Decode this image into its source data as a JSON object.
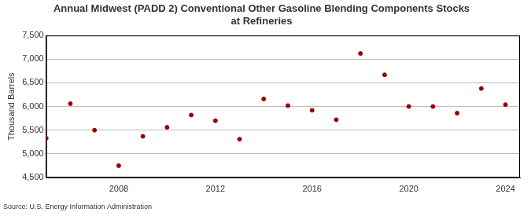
{
  "chart_data": {
    "type": "scatter",
    "title": "Annual Midwest (PADD 2) Conventional Other Gasoline Blending Components Stocks at Refineries",
    "y_label": "Thousand Barrels",
    "source": "Source: U.S. Energy Information Administration",
    "x": [
      2005,
      2006,
      2007,
      2008,
      2009,
      2010,
      2011,
      2012,
      2013,
      2014,
      2015,
      2016,
      2017,
      2018,
      2019,
      2020,
      2021,
      2022,
      2023,
      2024
    ],
    "values": [
      5330,
      6060,
      5500,
      4750,
      5370,
      5560,
      5820,
      5700,
      5310,
      6160,
      6020,
      5920,
      5720,
      7120,
      6670,
      6000,
      6000,
      5860,
      6380,
      6040
    ],
    "color": "#990000",
    "marker": "circle",
    "xlim": [
      2005,
      2024.6
    ],
    "xticks": [
      2008,
      2012,
      2016,
      2020,
      2024
    ],
    "ylim": [
      4500,
      7500
    ],
    "yticks": [
      {
        "value": 4500,
        "label": "4,500"
      },
      {
        "value": 5000,
        "label": "5,000"
      },
      {
        "value": 5500,
        "label": "5,500"
      },
      {
        "value": 6000,
        "label": "6,000"
      },
      {
        "value": 6500,
        "label": "6,500"
      },
      {
        "value": 7000,
        "label": "7,000"
      },
      {
        "value": 7500,
        "label": "7,500"
      }
    ],
    "grid": true
  }
}
